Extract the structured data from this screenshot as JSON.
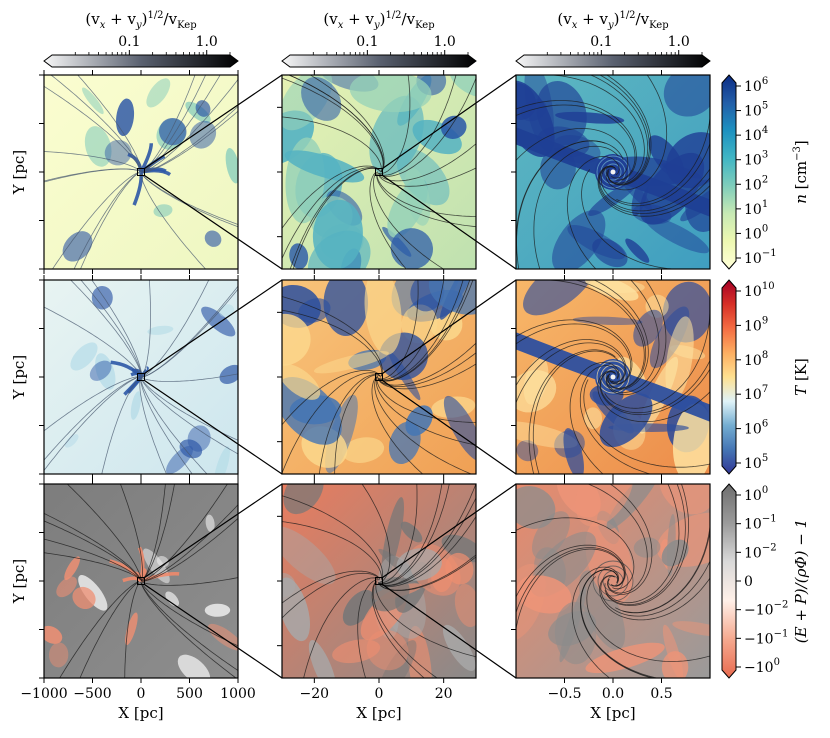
{
  "chart_data": {
    "type": "heatmap",
    "top_colorbar": {
      "label_base": "(v",
      "label_x": "x",
      "label_plus": " + v",
      "label_y": "y",
      "label_close": ")",
      "label_exp": "1/2",
      "label_div": "/v",
      "label_sub": "Kep",
      "ticks": [
        "0.1",
        "1.0"
      ],
      "range": [
        0.01,
        2.0
      ],
      "scale": "log",
      "colors": [
        "#f7f7f7",
        "#5a6170",
        "#000000"
      ]
    },
    "columns": [
      {
        "xlabel": "X [pc]",
        "xlim": [
          -1000,
          1000
        ],
        "xticks": [
          -1000,
          -500,
          0,
          500,
          1000
        ],
        "xtick_labels": [
          "−1000",
          "−500",
          "0",
          "500",
          "1000"
        ]
      },
      {
        "xlabel": "X [pc]",
        "xlim": [
          -30,
          30
        ],
        "xticks": [
          -20,
          0,
          20
        ],
        "xtick_labels": [
          "−20",
          "0",
          "20"
        ]
      },
      {
        "xlabel": "X [pc]",
        "xlim": [
          -1,
          1
        ],
        "xticks": [
          -0.5,
          0.0,
          0.5
        ],
        "xtick_labels": [
          "−0.5",
          "0.0",
          "0.5"
        ]
      }
    ],
    "ylabel": "Y [pc]",
    "rows": [
      {
        "quantity": "density",
        "cbar_label_main": "n",
        "cbar_label_unit": " [cm",
        "cbar_label_exp": "−3",
        "cbar_label_close": "]",
        "scale": "log",
        "range": [
          0.1,
          1000000
        ],
        "ticks": [
          {
            "base": "10",
            "exp": "6"
          },
          {
            "base": "10",
            "exp": "5"
          },
          {
            "base": "10",
            "exp": "4"
          },
          {
            "base": "10",
            "exp": "3"
          },
          {
            "base": "10",
            "exp": "2"
          },
          {
            "base": "10",
            "exp": "1"
          },
          {
            "base": "10",
            "exp": "0"
          },
          {
            "base": "10",
            "exp": "−1"
          }
        ],
        "colors": [
          "#ffffd9",
          "#edf8b1",
          "#c7e9b4",
          "#7fcdbb",
          "#41b6c4",
          "#1d91c0",
          "#225ea8",
          "#0c2c84"
        ]
      },
      {
        "quantity": "temperature",
        "cbar_label_main": "T",
        "cbar_label_unit": " [K]",
        "scale": "log",
        "range": [
          100000,
          10000000000
        ],
        "ticks": [
          {
            "base": "10",
            "exp": "10"
          },
          {
            "base": "10",
            "exp": "9"
          },
          {
            "base": "10",
            "exp": "8"
          },
          {
            "base": "10",
            "exp": "7"
          },
          {
            "base": "10",
            "exp": "6"
          },
          {
            "base": "10",
            "exp": "5"
          }
        ],
        "colors": [
          "#313695",
          "#4575b4",
          "#74add1",
          "#e0f3f8",
          "#fee090",
          "#fdae61",
          "#f46d43",
          "#d73027",
          "#a50026"
        ]
      },
      {
        "quantity": "bernoulli",
        "cbar_label_text": "(E + P)/(ρΦ) − 1",
        "scale": "symlog",
        "range": [
          -1,
          1
        ],
        "ticks": [
          {
            "base": "10",
            "exp": "0",
            "sign": ""
          },
          {
            "base": "10",
            "exp": "−1",
            "sign": ""
          },
          {
            "base": "10",
            "exp": "−2",
            "sign": ""
          },
          {
            "base": "0",
            "exp": "",
            "sign": ""
          },
          {
            "base": "10",
            "exp": "−2",
            "sign": "−"
          },
          {
            "base": "10",
            "exp": "−1",
            "sign": "−"
          },
          {
            "base": "10",
            "exp": "0",
            "sign": "−"
          }
        ],
        "colors": [
          "#e86a4f",
          "#f5a98f",
          "#fff0e8",
          "#d9d9d9",
          "#9a9a9a",
          "#6e6e6e"
        ]
      }
    ],
    "grid": false,
    "legend": "none"
  }
}
